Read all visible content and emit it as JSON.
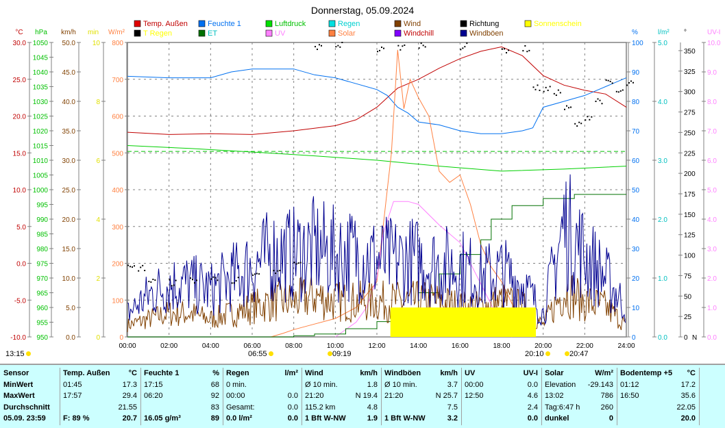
{
  "title": "Donnerstag, 05.09.2024",
  "legend": [
    {
      "label": "Temp. Außen",
      "color": "#e00000",
      "text": "#c00000"
    },
    {
      "label": "T Regen",
      "color": "#000000",
      "text": "#ffff00"
    },
    {
      "label": "Feuchte 1",
      "color": "#0070f0",
      "text": "#0070f0"
    },
    {
      "label": "ET",
      "color": "#007000",
      "text": "#00c0c0"
    },
    {
      "label": "Luftdruck",
      "color": "#00e000",
      "text": "#00c000"
    },
    {
      "label": "UV",
      "color": "#ff80ff",
      "text": "#ff80ff"
    },
    {
      "label": "Regen",
      "color": "#00e0e0",
      "text": "#00d0d0"
    },
    {
      "label": "Solar",
      "color": "#ff8040",
      "text": "#ff8040"
    },
    {
      "label": "Wind",
      "color": "#804000",
      "text": "#804000"
    },
    {
      "label": "Windchill",
      "color": "#8000ff",
      "text": "#c00000"
    },
    {
      "label": "Richtung",
      "color": "#000000",
      "text": "#000000"
    },
    {
      "label": "Windböen",
      "color": "#000090",
      "text": "#804000"
    },
    {
      "label": "Sonnenschein",
      "color": "#ffff00",
      "text": "#ffff00"
    }
  ],
  "axes_left": [
    {
      "unit": "°C",
      "color": "#c00000",
      "min": -10,
      "max": 30,
      "ticks": [
        "30.0",
        "25.0",
        "20.0",
        "15.0",
        "10.0",
        "5.0",
        "0.0",
        "-5.0",
        "-10.0"
      ]
    },
    {
      "unit": "hPa",
      "color": "#00c000",
      "min": 950,
      "max": 1050,
      "ticks": [
        "1050",
        "1045",
        "1040",
        "1035",
        "1030",
        "1025",
        "1020",
        "1015",
        "1010",
        "1005",
        "1000",
        "995",
        "990",
        "985",
        "980",
        "975",
        "970",
        "965",
        "960",
        "955",
        "950"
      ]
    },
    {
      "unit": "km/h",
      "color": "#804000",
      "min": 0,
      "max": 50,
      "ticks": [
        "50.0",
        "45.0",
        "40.0",
        "35.0",
        "30.0",
        "25.0",
        "20.0",
        "15.0",
        "10.0",
        "5.0",
        "0.0"
      ]
    },
    {
      "unit": "min",
      "color": "#e0e000",
      "min": 0,
      "max": 10,
      "ticks": [
        "10",
        "8",
        "6",
        "4",
        "2",
        "0"
      ]
    },
    {
      "unit": "W/m²",
      "color": "#ff8040",
      "min": 0,
      "max": 800,
      "ticks": [
        "800",
        "700",
        "600",
        "500",
        "400",
        "300",
        "200",
        "100",
        "0"
      ]
    }
  ],
  "axes_right": [
    {
      "unit": "%",
      "color": "#0070f0",
      "min": 0,
      "max": 100,
      "ticks": [
        "100",
        "90",
        "80",
        "70",
        "60",
        "50",
        "40",
        "30",
        "20",
        "10",
        "0"
      ]
    },
    {
      "unit": "l/m²",
      "color": "#00c0c0",
      "min": 0,
      "max": 5,
      "ticks": [
        "5.0",
        "4.0",
        "3.0",
        "2.0",
        "1.0",
        "0.0"
      ]
    },
    {
      "unit": "°",
      "color": "#000000",
      "min": 0,
      "max": 360,
      "ticks": [
        "350",
        "325",
        "300",
        "275",
        "250",
        "225",
        "200",
        "175",
        "150",
        "125",
        "100",
        "75",
        "50",
        "25",
        "0"
      ],
      "bottom": "N"
    },
    {
      "unit": "UV-I",
      "color": "#ff80ff",
      "min": 0,
      "max": 10,
      "ticks": [
        "10.0",
        "9.0",
        "8.0",
        "7.0",
        "6.0",
        "5.0",
        "4.0",
        "3.0",
        "2.0",
        "1.0",
        "0.0"
      ]
    }
  ],
  "markers": [
    {
      "time": "13:15",
      "icon": "sun-icon"
    },
    {
      "time": "06:55",
      "icon": "sunrise-icon"
    },
    {
      "time": "09:19",
      "icon": "moonrise-icon"
    },
    {
      "time": "20:10",
      "icon": "sunset-icon"
    },
    {
      "time": "20:47",
      "icon": "moonset-icon"
    }
  ],
  "chart_data": {
    "type": "line",
    "title": "Donnerstag, 05.09.2024",
    "x_ticks": [
      "00:00",
      "02:00",
      "04:00",
      "06:00",
      "08:00",
      "10:00",
      "12:00",
      "14:00",
      "16:00",
      "18:00",
      "20:00",
      "22:00",
      "24:00"
    ],
    "xlim": [
      0,
      24
    ],
    "grid": true,
    "legend_placement": "top",
    "series": [
      {
        "name": "Temp. Außen",
        "axis": "°C",
        "color": "#c00000",
        "x": [
          0,
          2,
          4,
          6,
          8,
          10,
          11,
          12,
          13,
          14,
          15,
          16,
          17,
          18,
          19,
          20,
          21,
          22,
          23,
          24
        ],
        "y": [
          17.8,
          17.5,
          17.6,
          17.5,
          18.0,
          18.7,
          19.5,
          21.2,
          23.8,
          25.0,
          26.5,
          27.8,
          28.8,
          29.4,
          28.2,
          25.5,
          24.2,
          23.5,
          23.0,
          21.2
        ]
      },
      {
        "name": "Feuchte 1",
        "axis": "%",
        "color": "#0070f0",
        "x": [
          0,
          2,
          4,
          5,
          6,
          8,
          9,
          10,
          11,
          12,
          12.5,
          13,
          13.5,
          14,
          15,
          16,
          17,
          18,
          19,
          19.5,
          20,
          21,
          22,
          23,
          24
        ],
        "y": [
          88.5,
          88,
          88,
          90,
          91,
          91,
          89,
          88,
          86,
          84,
          82,
          78,
          76,
          73,
          72,
          70,
          69,
          69,
          70,
          71,
          78,
          80,
          82,
          85,
          88
        ]
      },
      {
        "name": "Luftdruck",
        "axis": "hPa",
        "color": "#00d000",
        "x": [
          0,
          3,
          6,
          9,
          12,
          15,
          18,
          21,
          24
        ],
        "y": [
          1015,
          1014,
          1012.8,
          1011.5,
          1010,
          1008,
          1006.3,
          1007,
          1008
        ]
      },
      {
        "name": "Solar",
        "axis": "W/m²",
        "color": "#ff8040",
        "x": [
          6.9,
          7.5,
          8,
          9,
          10,
          11,
          12,
          12.3,
          12.7,
          13,
          13.3,
          13.6,
          14,
          14.5,
          15,
          15.5,
          16,
          16.5,
          17,
          17.5,
          18,
          18.5,
          19,
          19.4
        ],
        "y": [
          0,
          10,
          20,
          35,
          50,
          80,
          150,
          300,
          500,
          780,
          620,
          700,
          650,
          600,
          450,
          420,
          440,
          360,
          250,
          190,
          150,
          90,
          20,
          0
        ]
      },
      {
        "name": "UV",
        "axis": "UV-I",
        "color": "#ff80ff",
        "x": [
          10,
          11,
          11.5,
          12,
          12.3,
          12.8,
          13.5,
          14,
          15,
          16,
          17,
          18,
          18.5
        ],
        "y": [
          0,
          0.5,
          1,
          2,
          3.5,
          4.6,
          4.6,
          4.5,
          3.8,
          3.2,
          1.8,
          0.4,
          0
        ]
      },
      {
        "name": "ET",
        "axis": "l/m²",
        "color": "#007000",
        "step": true,
        "x": [
          0,
          8,
          9,
          10.5,
          12,
          13,
          14,
          15,
          16,
          17,
          17.5,
          18.5,
          20,
          21.5,
          24
        ],
        "y": [
          0,
          0.02,
          0.05,
          0.14,
          0.26,
          0.49,
          0.75,
          1.07,
          1.4,
          1.65,
          2.0,
          2.23,
          2.35,
          2.42,
          2.42
        ]
      },
      {
        "name": "Wind",
        "axis": "km/h",
        "color": "#804000",
        "x": [
          0,
          1,
          2,
          3,
          4,
          5,
          6,
          7,
          8,
          9,
          10,
          11,
          12,
          13,
          14,
          15,
          16,
          17,
          18,
          19,
          20,
          21,
          22,
          23,
          24
        ],
        "y": [
          2,
          3,
          4,
          4,
          3,
          4,
          5,
          6,
          6,
          7,
          6,
          6,
          6,
          6,
          6,
          6,
          5,
          5,
          6,
          5,
          2,
          8,
          6,
          5,
          2
        ]
      },
      {
        "name": "Windböen",
        "axis": "km/h",
        "color": "#000090",
        "x": [
          0,
          1,
          2,
          3,
          4,
          5,
          6,
          7,
          8,
          9,
          10,
          11,
          12,
          13,
          14,
          15,
          16,
          17,
          18,
          19,
          20,
          21,
          22,
          23,
          24
        ],
        "y": [
          4,
          7,
          9,
          9,
          8,
          10,
          12,
          14,
          14,
          15,
          14,
          14,
          13,
          13,
          13,
          12,
          12,
          10,
          11,
          9,
          4,
          19,
          14,
          10,
          5
        ]
      },
      {
        "name": "Richtung",
        "axis": "°",
        "color": "#000000",
        "points": [
          [
            0,
            85
          ],
          [
            0.5,
            85
          ],
          [
            1,
            69
          ],
          [
            2,
            67
          ],
          [
            3,
            70
          ],
          [
            4,
            72
          ],
          [
            5,
            70
          ],
          [
            6,
            75
          ],
          [
            7,
            80
          ],
          [
            8,
            90
          ],
          [
            9,
            355
          ],
          [
            10,
            358
          ],
          [
            12,
            352
          ],
          [
            13,
            355
          ],
          [
            14,
            358
          ],
          [
            16,
            356
          ],
          [
            18,
            352
          ],
          [
            19,
            353
          ],
          [
            19.5,
            305
          ],
          [
            20,
            303
          ],
          [
            20.5,
            300
          ],
          [
            21,
            280
          ],
          [
            21.5,
            260
          ],
          [
            22,
            270
          ],
          [
            22.5,
            290
          ],
          [
            23,
            311
          ],
          [
            23.5,
            300
          ],
          [
            24,
            310
          ]
        ]
      },
      {
        "name": "Sonnenschein",
        "axis": "min",
        "color": "#ffff00",
        "bar_from": 12.65,
        "bar_to": 19.65,
        "value": 1
      }
    ]
  },
  "table": [
    {
      "header": [
        "Sensor",
        ""
      ],
      "rows": [
        [
          "MinWert",
          ""
        ],
        [
          "MaxWert",
          ""
        ],
        [
          "Durchschnitt",
          ""
        ],
        [
          "05.09. 23:59",
          ""
        ]
      ],
      "bold_labels": true
    },
    {
      "header": [
        "Temp. Außen",
        "°C"
      ],
      "rows": [
        [
          "01:45",
          "17.3"
        ],
        [
          "17:57",
          "29.4"
        ],
        [
          "",
          "21.55"
        ],
        [
          "F: 89 %",
          "20.7"
        ]
      ]
    },
    {
      "header": [
        "Feuchte 1",
        "%"
      ],
      "rows": [
        [
          "17:15",
          "68"
        ],
        [
          "06:20",
          "92"
        ],
        [
          "",
          "83"
        ],
        [
          "16.05 g/m³",
          "89"
        ]
      ]
    },
    {
      "header": [
        "Regen",
        "l/m²"
      ],
      "rows": [
        [
          "0 min.",
          ""
        ],
        [
          "00:00",
          "0.0"
        ],
        [
          "Gesamt:",
          "0.0"
        ],
        [
          "0.0 l/m²",
          "0.0"
        ]
      ]
    },
    {
      "header": [
        "Wind",
        "km/h"
      ],
      "rows": [
        [
          "Ø 10 min.",
          "1.8"
        ],
        [
          "21:20",
          "N 19.4"
        ],
        [
          "115.2 km",
          "4.8"
        ],
        [
          "1 Bft W-NW",
          "1.9"
        ]
      ]
    },
    {
      "header": [
        "Windböen",
        "km/h"
      ],
      "rows": [
        [
          "Ø 10 min.",
          "3.7"
        ],
        [
          "21:20",
          "N 25.7"
        ],
        [
          "",
          "7.5"
        ],
        [
          "1 Bft W-NW",
          "3.2"
        ]
      ]
    },
    {
      "header": [
        "UV",
        "UV-I"
      ],
      "rows": [
        [
          "00:00",
          "0.0"
        ],
        [
          "12:50",
          "4.6"
        ],
        [
          "",
          "2.4"
        ],
        [
          "",
          "0.0"
        ]
      ]
    },
    {
      "header": [
        "Solar",
        "W/m²"
      ],
      "rows": [
        [
          "Elevation",
          "-29.143"
        ],
        [
          "13:02",
          "786"
        ],
        [
          "Tag:6:47 h",
          "260"
        ],
        [
          "dunkel",
          "0"
        ]
      ]
    },
    {
      "header": [
        "Bodentemp +5",
        "°C"
      ],
      "rows": [
        [
          "01:12",
          "17.2"
        ],
        [
          "16:50",
          "35.6"
        ],
        [
          "",
          "22.05"
        ],
        [
          "",
          "20.0"
        ]
      ]
    }
  ]
}
